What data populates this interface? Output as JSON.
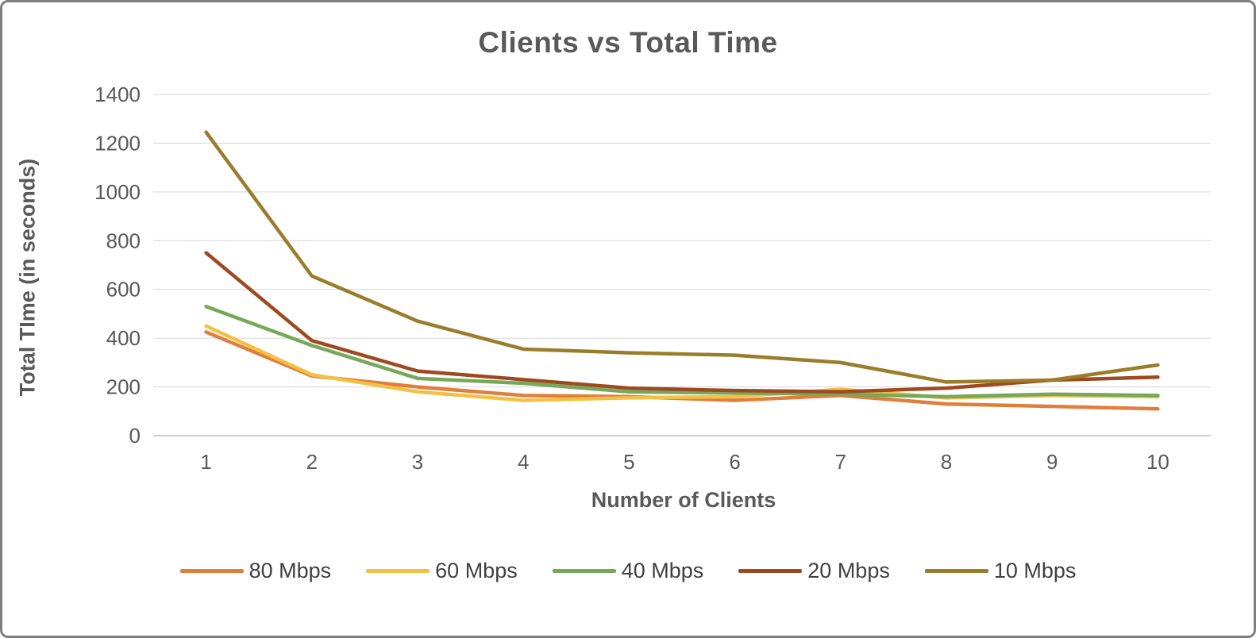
{
  "chart_data": {
    "type": "line",
    "title": "Clients vs Total Time",
    "xlabel": "Number of Clients",
    "ylabel": "Total TIme (in seconds)",
    "x": [
      1,
      2,
      3,
      4,
      5,
      6,
      7,
      8,
      9,
      10
    ],
    "ylim": [
      0,
      1400
    ],
    "yticks": [
      0,
      200,
      400,
      600,
      800,
      1000,
      1200,
      1400
    ],
    "grid": true,
    "legend_position": "bottom",
    "colors": {
      "gridline": "#d6d6d6",
      "axis_line": "#bfbfbf",
      "text": "#595959"
    },
    "series": [
      {
        "name": "80 Mbps",
        "color": "#e07e3c",
        "values": [
          425,
          245,
          200,
          165,
          160,
          145,
          165,
          130,
          120,
          110
        ]
      },
      {
        "name": "60 Mbps",
        "color": "#f2c144",
        "values": [
          450,
          250,
          180,
          145,
          155,
          160,
          190,
          155,
          165,
          160
        ]
      },
      {
        "name": "40 Mbps",
        "color": "#76a85a",
        "values": [
          530,
          370,
          235,
          215,
          180,
          175,
          170,
          160,
          170,
          165
        ]
      },
      {
        "name": "20 Mbps",
        "color": "#9e4a21",
        "values": [
          750,
          390,
          265,
          230,
          195,
          185,
          180,
          195,
          228,
          240
        ]
      },
      {
        "name": "10 Mbps",
        "color": "#9a7d2b",
        "values": [
          1245,
          655,
          470,
          355,
          340,
          330,
          300,
          220,
          228,
          290
        ]
      }
    ]
  }
}
